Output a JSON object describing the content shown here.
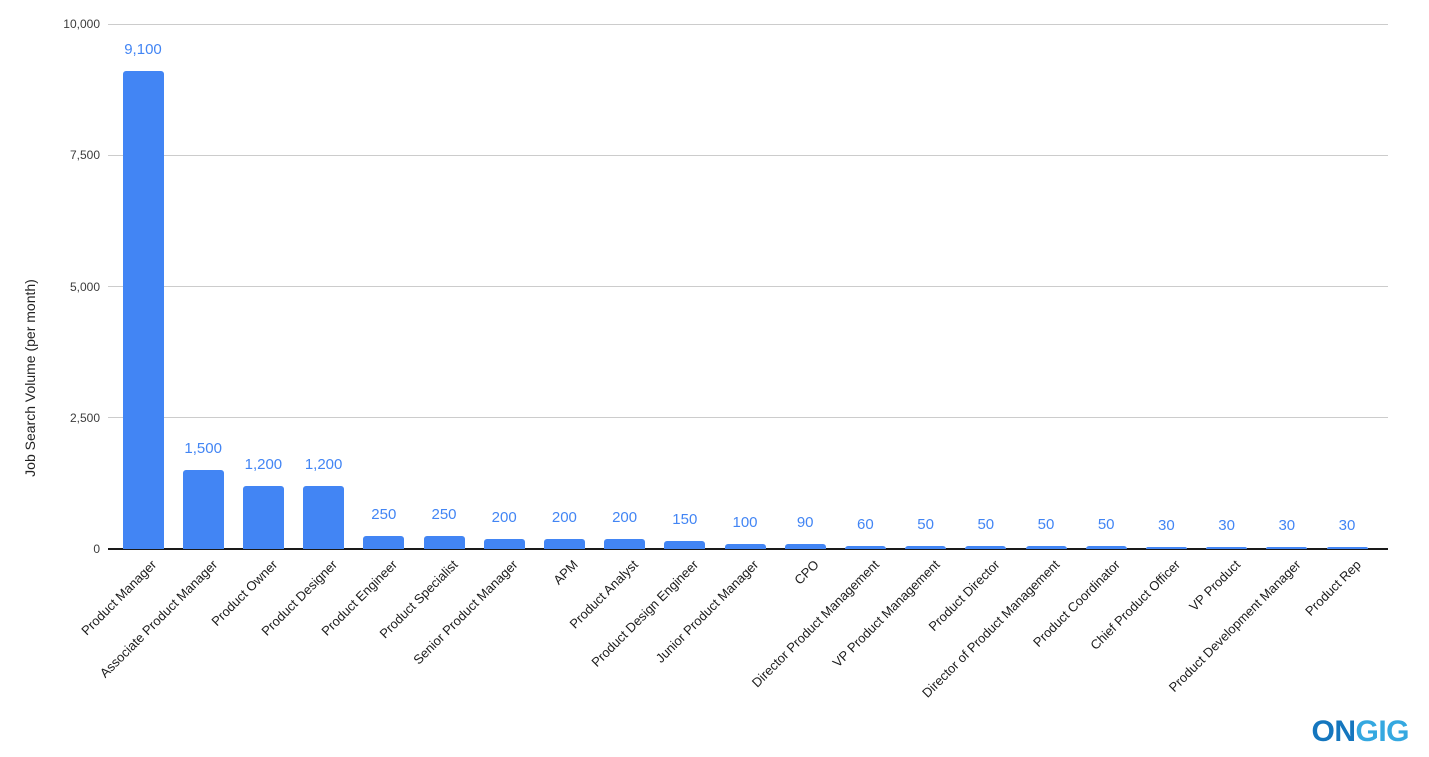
{
  "chart_data": {
    "type": "bar",
    "title": "",
    "xlabel": "",
    "ylabel": "Job Search Volume (per month)",
    "categories": [
      "Product Manager",
      "Associate Product Manager",
      "Product Owner",
      "Product Designer",
      "Product Engineer",
      "Product Specialist",
      "Senior Product Manager",
      "APM",
      "Product Analyst",
      "Product Design Engineer",
      "Junior Product Manager",
      "CPO",
      "Director Product Management",
      "VP Product Management",
      "Product Director",
      "Director of Product Management",
      "Product Coordinator",
      "Chief Product Officer",
      "VP Product",
      "Product Development Manager",
      "Product Rep"
    ],
    "values": [
      9100,
      1500,
      1200,
      1200,
      250,
      250,
      200,
      200,
      200,
      150,
      100,
      90,
      60,
      50,
      50,
      50,
      50,
      30,
      30,
      30,
      30
    ],
    "value_labels": [
      "9,100",
      "1,500",
      "1,200",
      "1,200",
      "250",
      "250",
      "200",
      "200",
      "200",
      "150",
      "100",
      "90",
      "60",
      "50",
      "50",
      "50",
      "50",
      "30",
      "30",
      "30",
      "30"
    ],
    "ylim": [
      0,
      10000
    ],
    "yticks": [
      0,
      2500,
      5000,
      7500,
      10000
    ],
    "ytick_labels": [
      "0",
      "2,500",
      "5,000",
      "7,500",
      "10,000"
    ],
    "grid": true,
    "legend": "none",
    "bar_color": "#4285F4",
    "data_label_color": "#4285F4",
    "gridline_color": "#cccccc",
    "axis_line_color": "#1a1a1a",
    "ytick_label_color": "#3c3c3c",
    "category_label_color": "#1c1c1c"
  },
  "logo": {
    "on": "ON",
    "gig": "GIG",
    "on_color": "#1576BE",
    "gig_color": "#35A8E0"
  }
}
